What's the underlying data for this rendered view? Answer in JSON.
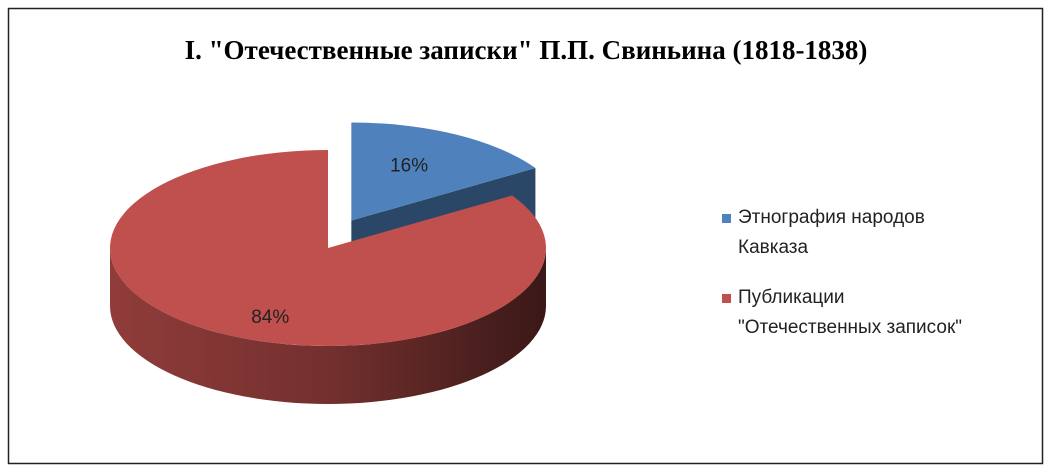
{
  "chart_data": {
    "type": "pie",
    "title": "I. \"Отечественные записки\" П.П. Свиньина (1818-1838)",
    "categories": [
      "Этнография народов\nКавказа",
      "Публикации\n\"Отечественных записок\""
    ],
    "values": [
      16,
      84
    ],
    "value_labels": [
      "16%",
      "84%"
    ],
    "colors": [
      "#4f81bd",
      "#c0504d"
    ],
    "legend": "right",
    "three_d": true,
    "exploded": [
      0
    ]
  }
}
